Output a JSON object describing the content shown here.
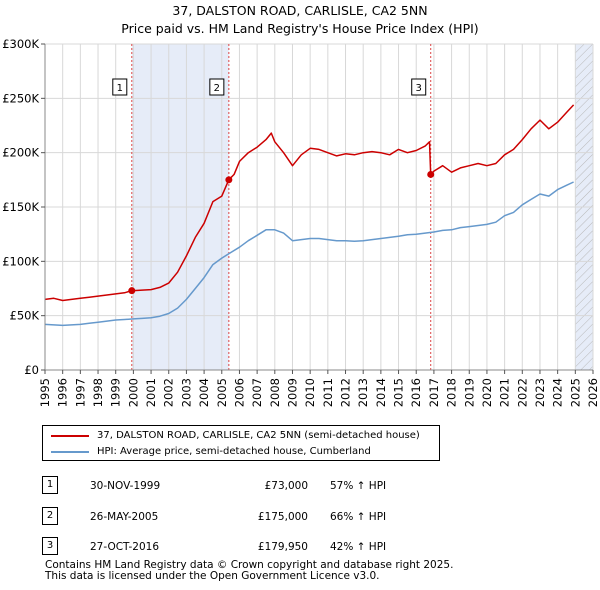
{
  "chart_data": {
    "type": "line",
    "title": "37, DALSTON ROAD, CARLISLE, CA2 5NN",
    "subtitle": "Price paid vs. HM Land Registry's House Price Index (HPI)",
    "xlim": [
      1995,
      2026
    ],
    "ylim": [
      0,
      300000
    ],
    "x_ticks": [
      "1995",
      "1996",
      "1997",
      "1998",
      "1999",
      "2000",
      "2001",
      "2002",
      "2003",
      "2004",
      "2005",
      "2006",
      "2007",
      "2008",
      "2009",
      "2010",
      "2011",
      "2012",
      "2013",
      "2014",
      "2015",
      "2016",
      "2017",
      "2018",
      "2019",
      "2020",
      "2021",
      "2022",
      "2023",
      "2024",
      "2025",
      "2026"
    ],
    "y_ticks": [
      {
        "value": 0,
        "label": "£0"
      },
      {
        "value": 50000,
        "label": "£50K"
      },
      {
        "value": 100000,
        "label": "£100K"
      },
      {
        "value": 150000,
        "label": "£150K"
      },
      {
        "value": 200000,
        "label": "£200K"
      },
      {
        "value": 250000,
        "label": "£250K"
      },
      {
        "value": 300000,
        "label": "£300K"
      }
    ],
    "grid": true,
    "series": [
      {
        "name": "37, DALSTON ROAD, CARLISLE, CA2 5NN (semi-detached house)",
        "color": "#cc0000",
        "x": [
          1995.0,
          1995.5,
          1996.0,
          1996.5,
          1997.0,
          1997.5,
          1998.0,
          1998.5,
          1999.0,
          1999.5,
          1999.9,
          2000.5,
          2001.0,
          2001.5,
          2002.0,
          2002.5,
          2003.0,
          2003.5,
          2004.0,
          2004.5,
          2005.0,
          2005.4,
          2005.7,
          2006.0,
          2006.5,
          2007.0,
          2007.5,
          2007.8,
          2008.0,
          2008.5,
          2009.0,
          2009.5,
          2010.0,
          2010.5,
          2011.0,
          2011.5,
          2012.0,
          2012.5,
          2013.0,
          2013.5,
          2014.0,
          2014.5,
          2015.0,
          2015.5,
          2016.0,
          2016.5,
          2016.75,
          2016.82,
          2017.0,
          2017.5,
          2018.0,
          2018.5,
          2019.0,
          2019.5,
          2020.0,
          2020.5,
          2021.0,
          2021.5,
          2022.0,
          2022.5,
          2023.0,
          2023.5,
          2024.0,
          2024.5,
          2024.9
        ],
        "values": [
          65000,
          66000,
          64000,
          65000,
          66000,
          67000,
          68000,
          69000,
          70000,
          71000,
          73000,
          73500,
          74000,
          76000,
          80000,
          90000,
          105000,
          122000,
          135000,
          155000,
          160000,
          175000,
          180000,
          192000,
          200000,
          205000,
          212000,
          218000,
          210000,
          200000,
          188000,
          198000,
          204000,
          203000,
          200000,
          197000,
          199000,
          198000,
          200000,
          201000,
          200000,
          198000,
          203000,
          200000,
          202000,
          206000,
          210000,
          179950,
          183000,
          188000,
          182000,
          186000,
          188000,
          190000,
          188000,
          190000,
          198000,
          203000,
          212000,
          222000,
          230000,
          222000,
          228000,
          237000,
          244000
        ]
      },
      {
        "name": "HPI: Average price, semi-detached house, Cumberland",
        "color": "#6699cc",
        "x": [
          1995.0,
          1995.5,
          1996.0,
          1996.5,
          1997.0,
          1997.5,
          1998.0,
          1998.5,
          1999.0,
          1999.5,
          2000.0,
          2000.5,
          2001.0,
          2001.5,
          2002.0,
          2002.5,
          2003.0,
          2003.5,
          2004.0,
          2004.5,
          2005.0,
          2005.5,
          2006.0,
          2006.5,
          2007.0,
          2007.5,
          2008.0,
          2008.5,
          2009.0,
          2009.5,
          2010.0,
          2010.5,
          2011.0,
          2011.5,
          2012.0,
          2012.5,
          2013.0,
          2013.5,
          2014.0,
          2014.5,
          2015.0,
          2015.5,
          2016.0,
          2016.5,
          2017.0,
          2017.5,
          2018.0,
          2018.5,
          2019.0,
          2019.5,
          2020.0,
          2020.5,
          2021.0,
          2021.5,
          2022.0,
          2022.5,
          2023.0,
          2023.5,
          2024.0,
          2024.5,
          2024.9
        ],
        "values": [
          42000,
          41500,
          41000,
          41500,
          42000,
          43000,
          44000,
          45000,
          46000,
          46500,
          47000,
          47500,
          48000,
          49500,
          52000,
          57000,
          65000,
          75000,
          85000,
          97000,
          103000,
          108000,
          113000,
          119000,
          124000,
          129000,
          129000,
          126000,
          119000,
          120000,
          121000,
          121000,
          120000,
          119000,
          119000,
          118500,
          119000,
          120000,
          121000,
          122000,
          123000,
          124500,
          125000,
          126000,
          127000,
          128500,
          129000,
          131000,
          132000,
          133000,
          134000,
          136000,
          142000,
          145000,
          152000,
          157000,
          162000,
          160000,
          166000,
          170000,
          173000
        ]
      }
    ],
    "sales": [
      {
        "marker": "1",
        "x": 1999.91,
        "price": 73000,
        "date": "30-NOV-1999",
        "price_label": "£73,000",
        "hpi_change": "57% ↑ HPI"
      },
      {
        "marker": "2",
        "x": 2005.4,
        "price": 175000,
        "date": "26-MAY-2005",
        "price_label": "£175,000",
        "hpi_change": "66% ↑ HPI"
      },
      {
        "marker": "3",
        "x": 2016.82,
        "price": 179950,
        "date": "27-OCT-2016",
        "price_label": "£179,950",
        "hpi_change": "42% ↑ HPI"
      }
    ],
    "shaded_spans": [
      [
        1999.91,
        2005.4
      ],
      [
        2025.0,
        2026.0
      ]
    ]
  },
  "footer": {
    "line1": "Contains HM Land Registry data © Crown copyright and database right 2025.",
    "line2": "This data is licensed under the Open Government Licence v3.0."
  }
}
